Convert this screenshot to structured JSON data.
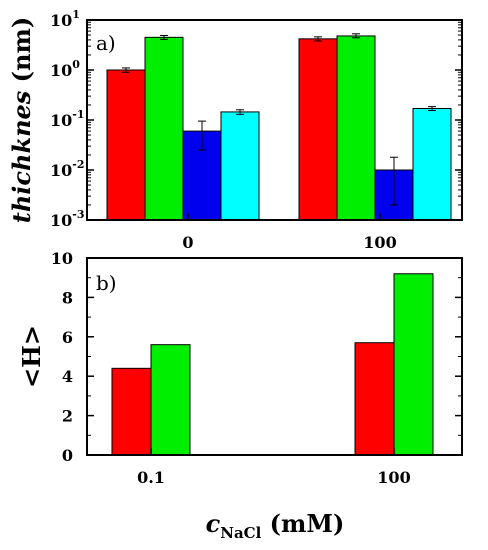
{
  "chart_data": [
    {
      "panel": "a)",
      "type": "bar",
      "ylabel": "thichknes (nm)",
      "yscale": "log",
      "ylim": [
        0.001,
        10
      ],
      "yticks": [
        {
          "value": 0.001,
          "base": "10",
          "exp": "-3"
        },
        {
          "value": 0.01,
          "base": "10",
          "exp": "-2"
        },
        {
          "value": 0.1,
          "base": "10",
          "exp": "-1"
        },
        {
          "value": 1,
          "base": "10",
          "exp": "0"
        },
        {
          "value": 10,
          "base": "10",
          "exp": "1"
        }
      ],
      "categories": [
        "0",
        "100"
      ],
      "series": [
        {
          "color": "#ff0000",
          "values": [
            1.0,
            4.2
          ],
          "errors": [
            [
              0.9,
              1.1
            ],
            [
              3.8,
              4.6
            ]
          ]
        },
        {
          "color": "#00ee00",
          "values": [
            4.5,
            4.8
          ],
          "errors": [
            [
              4.1,
              4.9
            ],
            [
              4.4,
              5.3
            ]
          ]
        },
        {
          "color": "#0000ee",
          "values": [
            0.06,
            0.01
          ],
          "errors": [
            [
              0.025,
              0.095
            ],
            [
              0.002,
              0.018
            ]
          ]
        },
        {
          "color": "#00ffff",
          "values": [
            0.145,
            0.17
          ],
          "errors": [
            [
              0.13,
              0.16
            ],
            [
              0.155,
              0.185
            ]
          ]
        }
      ]
    },
    {
      "panel": "b)",
      "type": "bar",
      "ylabel": "<H>",
      "xlabel_main": "c",
      "xlabel_sub": "NaCl",
      "xlabel_unit": " (mM)",
      "ylim": [
        0,
        10
      ],
      "yticks": [
        0,
        2,
        4,
        6,
        8,
        10
      ],
      "categories": [
        "0.1",
        "100"
      ],
      "series": [
        {
          "color": "#ff0000",
          "values": [
            4.4,
            5.7
          ]
        },
        {
          "color": "#00ee00",
          "values": [
            5.6,
            9.2
          ]
        }
      ]
    }
  ]
}
